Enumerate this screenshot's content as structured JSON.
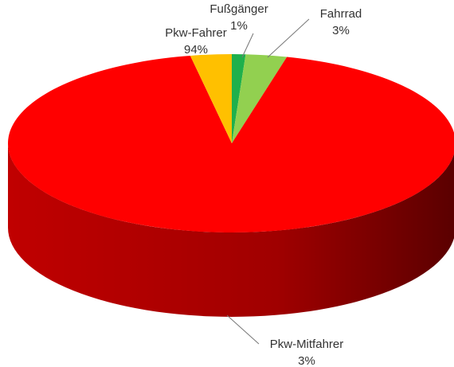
{
  "chart_data": {
    "type": "pie",
    "categories": [
      "Fußgänger",
      "Fahrrad",
      "Pkw-Fahrer",
      "Pkw-Mitfahrer"
    ],
    "values": [
      1,
      3,
      94,
      3
    ],
    "value_labels": [
      "1%",
      "3%",
      "94%",
      "3%"
    ],
    "colors": [
      "#1fb04c",
      "#92d050",
      "#ff0000",
      "#ffc000"
    ]
  }
}
